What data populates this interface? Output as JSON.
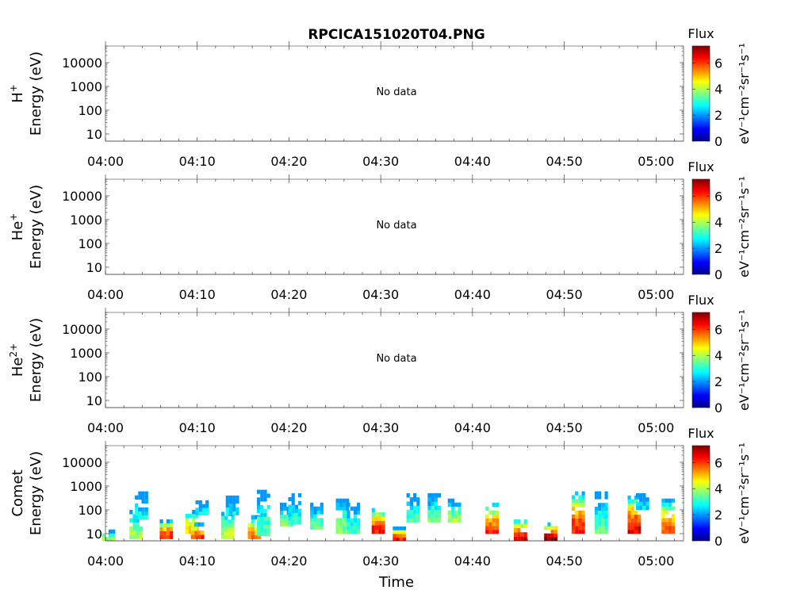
{
  "title": "RPCICA151020T04.PNG",
  "xlabel": "Time",
  "colorbar": {
    "label": "Flux",
    "unit_text": "eV⁻¹cm⁻²sr⁻¹s⁻¹",
    "ticks": [
      "0",
      "2",
      "4",
      "6"
    ],
    "range": [
      0,
      7.3
    ],
    "colormap": "jet"
  },
  "no_data_text": "No data",
  "time_ticks": [
    "04:00",
    "04:10",
    "04:20",
    "04:30",
    "04:40",
    "04:50",
    "05:00"
  ],
  "energy_ticks": [
    "10",
    "100",
    "1000",
    "10000"
  ],
  "panels": [
    {
      "species": "H",
      "sup": "+",
      "ylabel": "Energy (eV)",
      "has_data": false
    },
    {
      "species": "He",
      "sup": "+",
      "ylabel": "Energy (eV)",
      "has_data": false
    },
    {
      "species": "He",
      "sup": "2+",
      "ylabel": "Energy (eV)",
      "has_data": false
    },
    {
      "species": "Comet",
      "sup": "",
      "ylabel": "Energy (eV)",
      "has_data": true
    }
  ],
  "chart_data": {
    "type": "heatmap",
    "title": "RPCICA151020T04.PNG",
    "xlabel": "Time",
    "ylabel": "Energy (eV)",
    "xlim": [
      "04:00",
      "05:03"
    ],
    "ylim": [
      5,
      50000
    ],
    "yscale": "log",
    "zlabel": "Flux",
    "zlim": [
      0,
      7.3
    ],
    "grid": false,
    "series": [
      {
        "name": "Comet",
        "columns": [
          {
            "t": 0.3,
            "emin": 5,
            "emax": 15,
            "peak": 3.8
          },
          {
            "t": 3.3,
            "emin": 6,
            "emax": 100,
            "peak": 4.0
          },
          {
            "t": 3.9,
            "emin": 40,
            "emax": 600,
            "peak": 2.8
          },
          {
            "t": 6.6,
            "emin": 6,
            "emax": 40,
            "peak": 6.2
          },
          {
            "t": 9.4,
            "emin": 10,
            "emax": 100,
            "peak": 5.0
          },
          {
            "t": 10.0,
            "emin": 6,
            "emax": 30,
            "peak": 6.0
          },
          {
            "t": 10.5,
            "emin": 60,
            "emax": 250,
            "peak": 2.8
          },
          {
            "t": 13.3,
            "emin": 6,
            "emax": 120,
            "peak": 4.2
          },
          {
            "t": 13.8,
            "emin": 60,
            "emax": 400,
            "peak": 2.6
          },
          {
            "t": 16.2,
            "emin": 6,
            "emax": 60,
            "peak": 5.5
          },
          {
            "t": 17.2,
            "emin": 8,
            "emax": 700,
            "peak": 3.4
          },
          {
            "t": 19.7,
            "emin": 20,
            "emax": 200,
            "peak": 3.6
          },
          {
            "t": 20.6,
            "emin": 25,
            "emax": 500,
            "peak": 3.0
          },
          {
            "t": 23.0,
            "emin": 15,
            "emax": 200,
            "peak": 3.4
          },
          {
            "t": 25.8,
            "emin": 10,
            "emax": 300,
            "peak": 3.8
          },
          {
            "t": 27.0,
            "emin": 10,
            "emax": 200,
            "peak": 3.3
          },
          {
            "t": 29.7,
            "emin": 10,
            "emax": 120,
            "peak": 6.3
          },
          {
            "t": 32.0,
            "emin": 5,
            "emax": 20,
            "peak": 6.2
          },
          {
            "t": 33.5,
            "emin": 30,
            "emax": 500,
            "peak": 3.2
          },
          {
            "t": 35.8,
            "emin": 30,
            "emax": 500,
            "peak": 3.6
          },
          {
            "t": 38.0,
            "emin": 30,
            "emax": 300,
            "peak": 3.8
          },
          {
            "t": 42.1,
            "emin": 10,
            "emax": 200,
            "peak": 6.0
          },
          {
            "t": 45.2,
            "emin": 5,
            "emax": 40,
            "peak": 6.8
          },
          {
            "t": 48.5,
            "emin": 5,
            "emax": 30,
            "peak": 7.0
          },
          {
            "t": 51.5,
            "emin": 10,
            "emax": 600,
            "peak": 6.3
          },
          {
            "t": 54.0,
            "emin": 10,
            "emax": 600,
            "peak": 3.4
          },
          {
            "t": 57.6,
            "emin": 10,
            "emax": 400,
            "peak": 6.6
          },
          {
            "t": 58.5,
            "emin": 100,
            "emax": 500,
            "peak": 2.5
          },
          {
            "t": 61.3,
            "emin": 10,
            "emax": 300,
            "peak": 5.8
          }
        ]
      }
    ]
  }
}
